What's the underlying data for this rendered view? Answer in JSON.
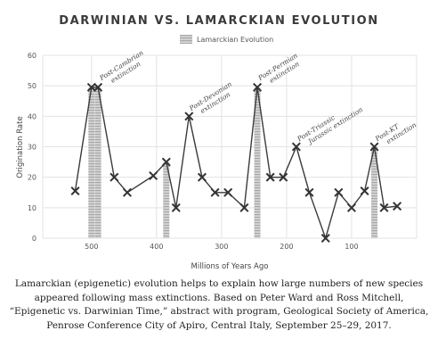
{
  "chart_data": {
    "type": "line",
    "title": "DARWINIAN VS. LAMARCKIAN EVOLUTION",
    "xlabel": "Millions of Years Ago",
    "ylabel": "Origination Rate",
    "x_reversed": true,
    "xlim": [
      575,
      0
    ],
    "ylim": [
      0,
      60
    ],
    "x_ticks": [
      500,
      400,
      300,
      200,
      100
    ],
    "y_ticks": [
      0,
      10,
      20,
      30,
      40,
      50,
      60
    ],
    "grid": true,
    "legend": {
      "position": "top-center",
      "entries": [
        "Lamarckian Evolution"
      ]
    },
    "series": [
      {
        "x": [
          525,
          500,
          490,
          465,
          445,
          405,
          385,
          370,
          350,
          330,
          310,
          290,
          265,
          245,
          225,
          205,
          185,
          165,
          140,
          120,
          100,
          80,
          65,
          50,
          30
        ],
        "y": [
          15.5,
          49.5,
          49.5,
          20,
          15,
          20.5,
          25,
          10,
          40,
          20,
          15,
          15,
          10,
          49.5,
          20,
          20,
          30,
          15,
          0,
          15,
          10,
          15.5,
          30,
          10,
          10.5
        ]
      }
    ],
    "lamarckian_bars": [
      {
        "x": 500,
        "value": 49.5
      },
      {
        "x": 490,
        "value": 49.5
      },
      {
        "x": 385,
        "value": 25
      },
      {
        "x": 245,
        "value": 49.5
      },
      {
        "x": 65,
        "value": 30
      }
    ],
    "annotations": [
      {
        "lines": [
          "Post-Cambrian",
          "extinction"
        ],
        "x": 488,
        "y": 51
      },
      {
        "lines": [
          "Post-Devonian",
          "extinction"
        ],
        "x": 350,
        "y": 41
      },
      {
        "lines": [
          "Post-Permian",
          "extinction"
        ],
        "x": 244,
        "y": 51
      },
      {
        "lines": [
          "Post-Triassic",
          "Jurassic extinction"
        ],
        "x": 184,
        "y": 31
      },
      {
        "lines": [
          "Post-KT",
          "extinction"
        ],
        "x": 64,
        "y": 31
      }
    ]
  },
  "caption": "Lamarckian (epigenetic) evolution helps to explain how large numbers of new species appeared following mass extinctions. Based on Peter Ward and Ross Mitchell, “Epigenetic vs. Darwinian Time,” abstract with program, Geological Society of America, Penrose Conference City of Apiro, Central Italy, September 25–29, 2017.",
  "colors": {
    "line": "#3a3a3a",
    "marker": "#333333",
    "bar_fill": "#d4d4d4",
    "bar_stripe": "#a8a8a8",
    "grid": "#e3e3e3"
  }
}
